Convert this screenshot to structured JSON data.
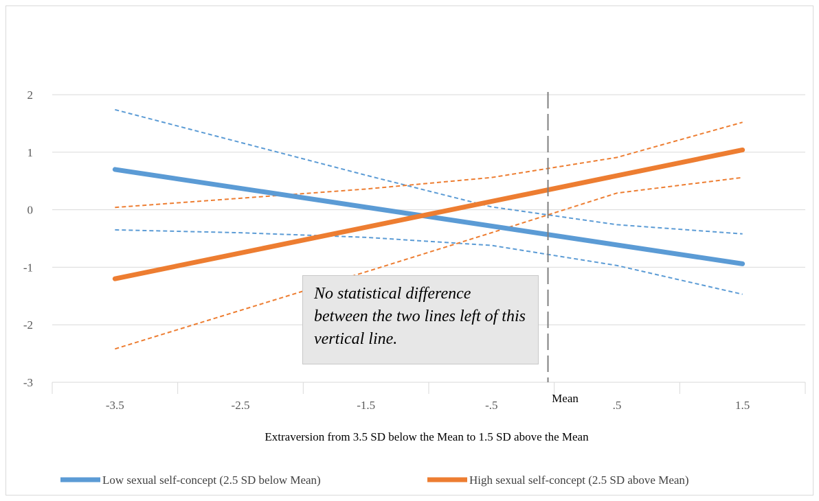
{
  "chart_data": {
    "type": "line",
    "x_tick_labels": [
      "-3.5",
      "-2.5",
      "-1.5",
      "-.5",
      ".5",
      "1.5"
    ],
    "x_ticks": [
      -3.5,
      -2.5,
      -1.5,
      -0.5,
      0.5,
      1.5
    ],
    "xlim": [
      -4,
      2
    ],
    "ylim": [
      -3,
      2
    ],
    "y_ticks": [
      2,
      1,
      0,
      -1,
      -2,
      -3
    ],
    "y_tick_labels": [
      "2",
      "1",
      "0",
      "-1",
      "-2",
      "-3"
    ],
    "xlabel": "Extraversion from 3.5 SD below the Mean to 1.5 SD above the Mean",
    "ylabel": "",
    "mean_line": {
      "x": -0.05,
      "label": "Mean",
      "style": "dashed",
      "color": "#7f7f7f"
    },
    "annotation": "No statistical difference between the two lines left of this vertical line.",
    "grid": "horizontal",
    "legend_position": "bottom",
    "series": [
      {
        "name": "Low sexual self-concept (2.5 SD below Mean)",
        "role": "estimate",
        "color": "#5b9bd5",
        "x": [
          -3.5,
          1.5
        ],
        "y": [
          0.7,
          -0.94
        ]
      },
      {
        "name": "High sexual self-concept (2.5 SD above Mean)",
        "role": "estimate",
        "color": "#ed7d31",
        "x": [
          -3.5,
          1.5
        ],
        "y": [
          -1.2,
          1.04
        ]
      },
      {
        "role": "ci-upper",
        "color": "#5b9bd5",
        "x": [
          -3.5,
          -2.5,
          -1.5,
          -0.5,
          0.5,
          1.5
        ],
        "y": [
          1.74,
          1.17,
          0.6,
          0.05,
          -0.26,
          -0.42
        ]
      },
      {
        "role": "ci-lower",
        "color": "#5b9bd5",
        "x": [
          -3.5,
          -2.5,
          -1.5,
          -0.5,
          0.5,
          1.5
        ],
        "y": [
          -0.35,
          -0.4,
          -0.48,
          -0.62,
          -0.97,
          -1.47
        ]
      },
      {
        "role": "ci-upper",
        "color": "#ed7d31",
        "x": [
          -3.5,
          -2.5,
          -1.5,
          -0.5,
          0.5,
          1.5
        ],
        "y": [
          0.04,
          0.2,
          0.36,
          0.56,
          0.91,
          1.52
        ]
      },
      {
        "role": "ci-lower",
        "color": "#ed7d31",
        "x": [
          -3.5,
          -2.5,
          -1.5,
          -0.5,
          0.5,
          1.5
        ],
        "y": [
          -2.42,
          -1.75,
          -1.08,
          -0.4,
          0.29,
          0.56
        ]
      }
    ]
  }
}
